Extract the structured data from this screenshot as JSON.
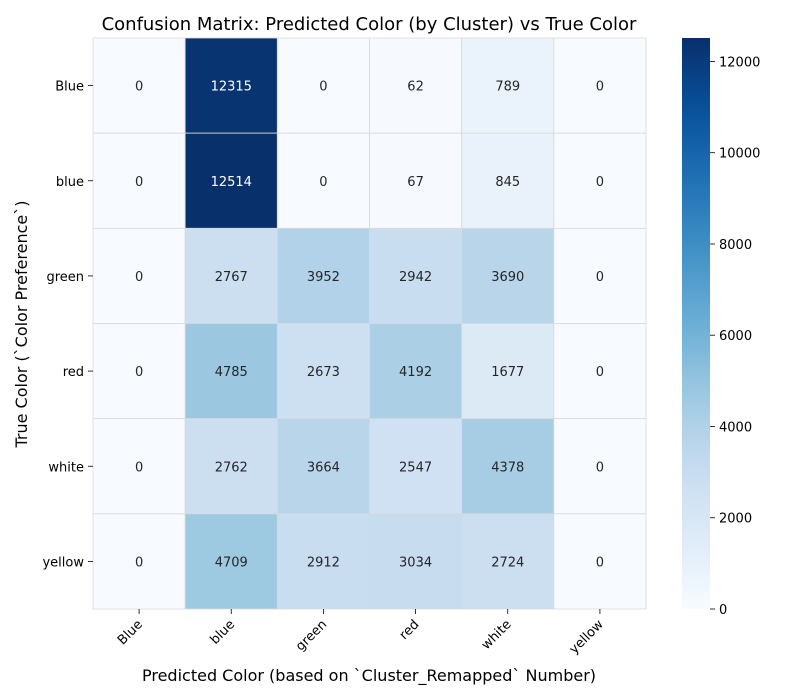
{
  "chart_data": {
    "type": "heatmap",
    "title": "Confusion Matrix: Predicted Color (by Cluster) vs True Color",
    "xlabel": "Predicted Color (based on `Cluster_Remapped` Number)",
    "ylabel": "True Color (`Color Preference`)",
    "x_categories": [
      "Blue",
      "blue",
      "green",
      "red",
      "white",
      "yellow"
    ],
    "y_categories": [
      "Blue",
      "blue",
      "green",
      "red",
      "white",
      "yellow"
    ],
    "values": [
      [
        0,
        12315,
        0,
        62,
        789,
        0
      ],
      [
        0,
        12514,
        0,
        67,
        845,
        0
      ],
      [
        0,
        2767,
        3952,
        2942,
        3690,
        0
      ],
      [
        0,
        4785,
        2673,
        4192,
        1677,
        0
      ],
      [
        0,
        2762,
        3664,
        2547,
        4378,
        0
      ],
      [
        0,
        4709,
        2912,
        3034,
        2724,
        0
      ]
    ],
    "colorbar": {
      "min": 0,
      "max": 12514,
      "ticks": [
        0,
        2000,
        4000,
        6000,
        8000,
        10000,
        12000
      ],
      "colormap": "Blues"
    },
    "grid": true,
    "legend": "colorbar-right"
  }
}
